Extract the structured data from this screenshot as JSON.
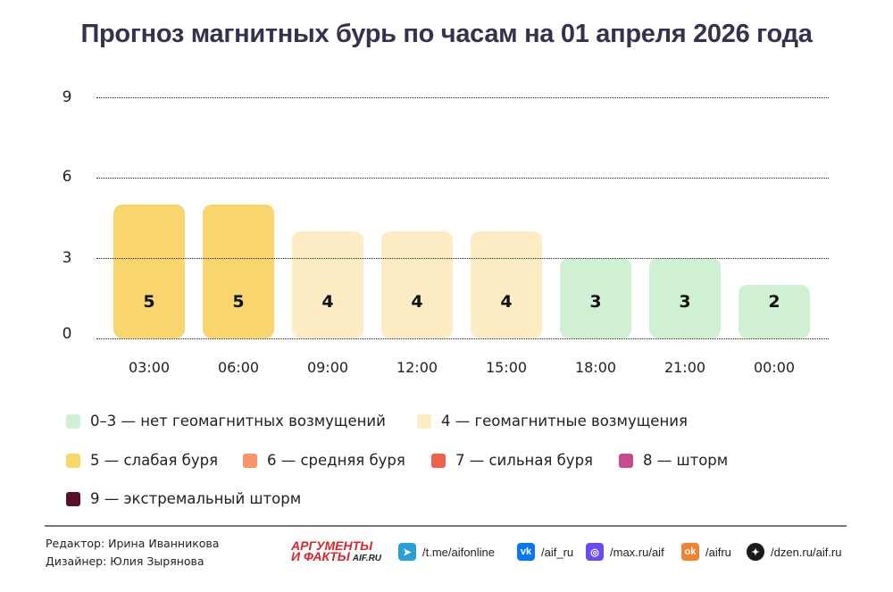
{
  "title": "Прогноз магнитных бурь по часам на 01 апреля 2026 года",
  "chart_data": {
    "type": "bar",
    "title": "Прогноз магнитных бурь по часам на 01 апреля 2026 года",
    "xlabel": "",
    "ylabel": "",
    "ylim": [
      0,
      9
    ],
    "yticks": [
      "0",
      "3",
      "6",
      "9"
    ],
    "grid": true,
    "legend_position": "bottom",
    "categories": [
      "03:00",
      "06:00",
      "09:00",
      "12:00",
      "15:00",
      "18:00",
      "21:00",
      "00:00"
    ],
    "values": [
      5,
      5,
      4,
      4,
      4,
      3,
      3,
      2
    ],
    "value_labels": [
      "5",
      "5",
      "4",
      "4",
      "4",
      "3",
      "3",
      "2"
    ],
    "bar_colors": [
      "#f9d56e",
      "#f9d56e",
      "#fdecc4",
      "#fdecc4",
      "#fdecc4",
      "#d0f0d4",
      "#d0f0d4",
      "#d0f0d4"
    ]
  },
  "legend": [
    {
      "label": "0–3 — нет геомагнитных возмущений",
      "color": "#d0f0d4"
    },
    {
      "label": "4 — геомагнитные возмущения",
      "color": "#fdecc4"
    },
    {
      "label": "5 — слабая буря",
      "color": "#f9d56e"
    },
    {
      "label": "6 — средняя буря",
      "color": "#f7956a"
    },
    {
      "label": "7 — сильная буря",
      "color": "#f0604e"
    },
    {
      "label": "8 — шторм",
      "color": "#c74b8c"
    },
    {
      "label": "9 — экстремальный шторм",
      "color": "#5a0f2e"
    }
  ],
  "footer": {
    "editor": "Редактор: Ирина Иванникова",
    "designer": "Дизайнер: Юлия Зырянова",
    "logo_line1": "АРГУМЕНТЫ",
    "logo_line2": "И ФАКТЫ",
    "logo_site": "AIF.RU",
    "social": [
      {
        "icon": "telegram-icon",
        "glyph": "➤",
        "label": "/t.me/aifonline",
        "color": "#2a9fd8"
      },
      {
        "icon": "vk-icon",
        "glyph": "vk",
        "label": "/aif_ru",
        "color": "#0a77f2"
      },
      {
        "icon": "max-icon",
        "glyph": "◎",
        "label": "/max.ru/aif",
        "color": "#6b4cf0"
      },
      {
        "icon": "odnoklassniki-icon",
        "glyph": "ok",
        "label": "/aifru",
        "color": "#ee8434"
      },
      {
        "icon": "dzen-icon",
        "glyph": "✦",
        "label": "/dzen.ru/aif.ru",
        "color": "#1a1a1a"
      }
    ]
  }
}
